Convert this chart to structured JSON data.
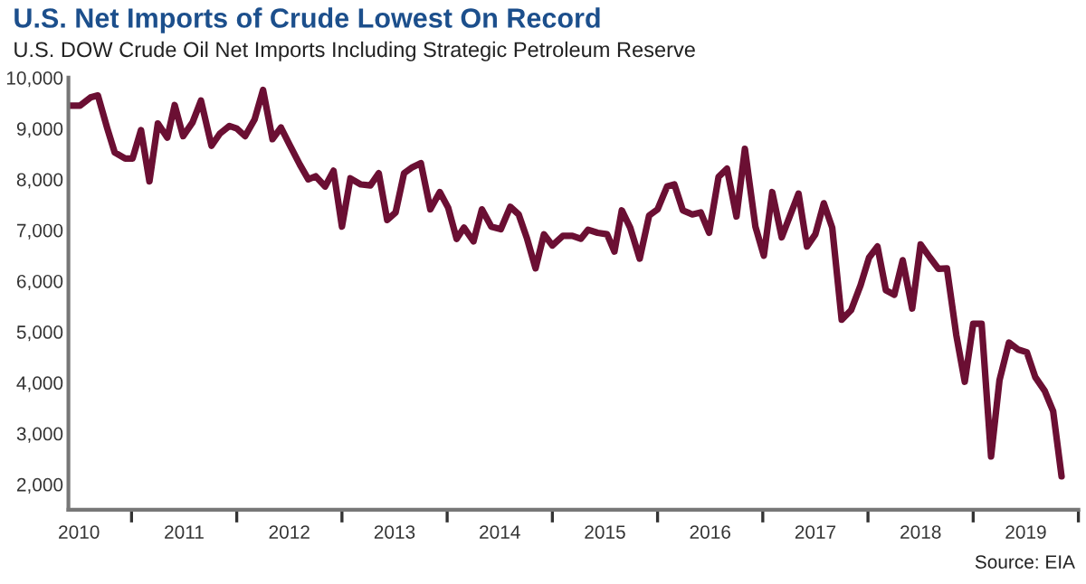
{
  "chart_data": {
    "type": "line",
    "title": "U.S. Net Imports of Crude Lowest On Record",
    "subtitle": "U.S. DOW Crude Oil Net Imports Including Strategic Petroleum Reserve",
    "annotations": [
      "Source: EIA"
    ],
    "x": [
      2010.4,
      2010.51,
      2010.61,
      2010.68,
      2010.77,
      2010.84,
      2010.94,
      2011.01,
      2011.09,
      2011.17,
      2011.25,
      2011.34,
      2011.41,
      2011.49,
      2011.58,
      2011.66,
      2011.76,
      2011.84,
      2011.93,
      2012.0,
      2012.08,
      2012.17,
      2012.25,
      2012.34,
      2012.42,
      2012.5,
      2012.6,
      2012.68,
      2012.75,
      2012.84,
      2012.92,
      2013.0,
      2013.08,
      2013.18,
      2013.27,
      2013.35,
      2013.43,
      2013.51,
      2013.59,
      2013.67,
      2013.75,
      2013.84,
      2013.93,
      2014.01,
      2014.09,
      2014.16,
      2014.25,
      2014.33,
      2014.42,
      2014.51,
      2014.6,
      2014.68,
      2014.76,
      2014.84,
      2014.92,
      2015.0,
      2015.1,
      2015.19,
      2015.27,
      2015.34,
      2015.43,
      2015.52,
      2015.59,
      2015.66,
      2015.74,
      2015.83,
      2015.92,
      2016.0,
      2016.09,
      2016.16,
      2016.24,
      2016.33,
      2016.41,
      2016.49,
      2016.58,
      2016.66,
      2016.75,
      2016.83,
      2016.93,
      2017.01,
      2017.09,
      2017.18,
      2017.26,
      2017.34,
      2017.42,
      2017.5,
      2017.58,
      2017.66,
      2017.75,
      2017.84,
      2017.93,
      2018.01,
      2018.09,
      2018.17,
      2018.25,
      2018.33,
      2018.42,
      2018.5,
      2018.59,
      2018.67,
      2018.75,
      2018.84,
      2018.92,
      2019.0,
      2019.08,
      2019.17,
      2019.25,
      2019.34,
      2019.43,
      2019.51,
      2019.59,
      2019.68,
      2019.76,
      2019.84
    ],
    "series": [
      {
        "color": "#6b0f33",
        "values": [
          9450,
          9450,
          9610,
          9650,
          9000,
          8530,
          8410,
          8410,
          8970,
          7960,
          9100,
          8820,
          9460,
          8850,
          9120,
          9550,
          8660,
          8900,
          9050,
          9000,
          8850,
          9180,
          9760,
          8790,
          9020,
          8690,
          8290,
          8000,
          8060,
          7860,
          8170,
          7070,
          8020,
          7900,
          7880,
          8120,
          7200,
          7350,
          8120,
          8240,
          8320,
          7410,
          7750,
          7440,
          6830,
          7050,
          6780,
          7410,
          7070,
          7020,
          7460,
          7310,
          6830,
          6250,
          6920,
          6700,
          6890,
          6890,
          6830,
          7010,
          6950,
          6920,
          6580,
          7390,
          7050,
          6440,
          7290,
          7410,
          7860,
          7900,
          7390,
          7310,
          7350,
          6950,
          8050,
          8210,
          7270,
          8600,
          7070,
          6500,
          7750,
          6860,
          7290,
          7720,
          6680,
          6920,
          7530,
          7050,
          5240,
          5430,
          5920,
          6460,
          6680,
          5820,
          5730,
          6410,
          5460,
          6720,
          6460,
          6240,
          6250,
          4930,
          4020,
          5160,
          5160,
          2550,
          4050,
          4790,
          4650,
          4600,
          4110,
          3840,
          3440,
          2160
        ]
      }
    ],
    "xlim": [
      2010.4,
      2020.0
    ],
    "xticks": [
      {
        "value": 2010.5,
        "label": "2010"
      },
      {
        "value": 2011,
        "label": null
      },
      {
        "value": 2011.5,
        "label": "2011"
      },
      {
        "value": 2012,
        "label": null
      },
      {
        "value": 2012.5,
        "label": "2012"
      },
      {
        "value": 2013,
        "label": null
      },
      {
        "value": 2013.5,
        "label": "2013"
      },
      {
        "value": 2014,
        "label": null
      },
      {
        "value": 2014.5,
        "label": "2014"
      },
      {
        "value": 2015,
        "label": null
      },
      {
        "value": 2015.5,
        "label": "2015"
      },
      {
        "value": 2016,
        "label": null
      },
      {
        "value": 2016.5,
        "label": "2016"
      },
      {
        "value": 2017,
        "label": null
      },
      {
        "value": 2017.5,
        "label": "2017"
      },
      {
        "value": 2018,
        "label": null
      },
      {
        "value": 2018.5,
        "label": "2018"
      },
      {
        "value": 2019,
        "label": null
      },
      {
        "value": 2019.5,
        "label": "2019"
      },
      {
        "value": 2020,
        "label": null
      }
    ],
    "ylim": [
      1500,
      10000
    ],
    "yticks": [
      {
        "value": 2000,
        "label": "2,000"
      },
      {
        "value": 3000,
        "label": "3,000"
      },
      {
        "value": 4000,
        "label": "4,000"
      },
      {
        "value": 5000,
        "label": "5,000"
      },
      {
        "value": 6000,
        "label": "6,000"
      },
      {
        "value": 7000,
        "label": "7,000"
      },
      {
        "value": 8000,
        "label": "8,000"
      },
      {
        "value": 9000,
        "label": "9,000"
      },
      {
        "value": 10000,
        "label": "10,000"
      }
    ],
    "grid": false,
    "legend": false,
    "marker": "none",
    "line_style": "solid"
  }
}
